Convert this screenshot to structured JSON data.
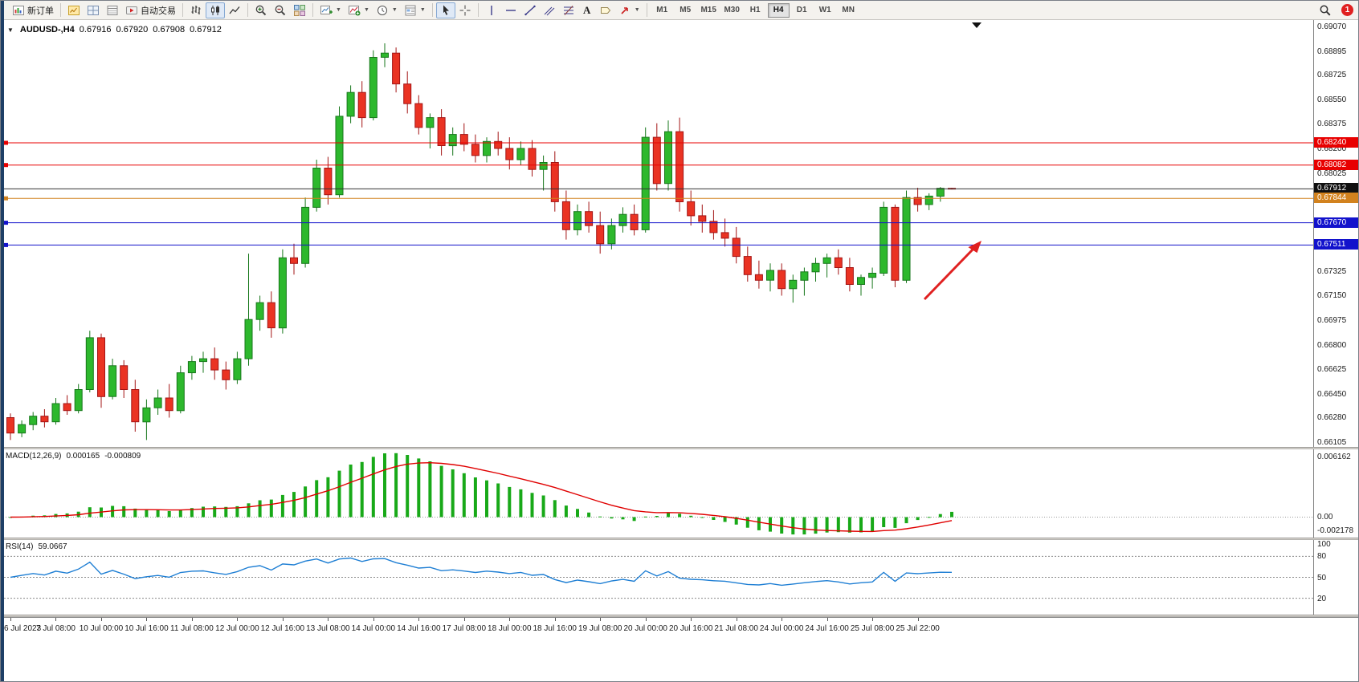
{
  "toolbar": {
    "new_order_label": "新订单",
    "autotrading_label": "自动交易",
    "timeframes": [
      "M1",
      "M5",
      "M15",
      "M30",
      "H1",
      "H4",
      "D1",
      "W1",
      "MN"
    ],
    "active_timeframe": "H4",
    "notification_count": "1"
  },
  "chart": {
    "symbol_period": "AUDUSD-,H4",
    "open": "0.67916",
    "high": "0.67920",
    "low": "0.67908",
    "close": "0.67912"
  },
  "chart_data": {
    "type": "candlestick",
    "symbol": "AUDUSD",
    "timeframe": "H4",
    "price_range": [
      0.66105,
      0.6907
    ],
    "price_axis_labels": [
      "0.69070",
      "0.68895",
      "0.68725",
      "0.68550",
      "0.68375",
      "0.68200",
      "0.68025",
      "0.67850",
      "0.67675",
      "0.67500",
      "0.67325",
      "0.67150",
      "0.66975",
      "0.66800",
      "0.66625",
      "0.66450",
      "0.66280",
      "0.66105"
    ],
    "x_labels": [
      "6 Jul 2023",
      "7 Jul 08:00",
      "10 Jul 00:00",
      "10 Jul 16:00",
      "11 Jul 08:00",
      "12 Jul 00:00",
      "12 Jul 16:00",
      "13 Jul 08:00",
      "14 Jul 00:00",
      "14 Jul 16:00",
      "17 Jul 08:00",
      "18 Jul 00:00",
      "18 Jul 16:00",
      "19 Jul 08:00",
      "20 Jul 00:00",
      "20 Jul 16:00",
      "21 Jul 08:00",
      "24 Jul 00:00",
      "24 Jul 16:00",
      "25 Jul 08:00",
      "25 Jul 22:00"
    ],
    "candles": [
      [
        0.6628,
        0.6631,
        0.6612,
        0.6617
      ],
      [
        0.6617,
        0.6626,
        0.6614,
        0.6623
      ],
      [
        0.6623,
        0.6632,
        0.6619,
        0.6629
      ],
      [
        0.6629,
        0.6634,
        0.6621,
        0.6625
      ],
      [
        0.6625,
        0.6642,
        0.6623,
        0.6638
      ],
      [
        0.6638,
        0.6644,
        0.663,
        0.6633
      ],
      [
        0.6633,
        0.6652,
        0.6631,
        0.6648
      ],
      [
        0.6648,
        0.669,
        0.6646,
        0.6685
      ],
      [
        0.6685,
        0.6688,
        0.6635,
        0.6643
      ],
      [
        0.6643,
        0.667,
        0.6641,
        0.6665
      ],
      [
        0.6665,
        0.6669,
        0.6642,
        0.6648
      ],
      [
        0.6648,
        0.6655,
        0.6618,
        0.6625
      ],
      [
        0.6625,
        0.6641,
        0.6612,
        0.6635
      ],
      [
        0.6635,
        0.6648,
        0.663,
        0.6642
      ],
      [
        0.6642,
        0.6652,
        0.6628,
        0.6633
      ],
      [
        0.6633,
        0.6665,
        0.6631,
        0.666
      ],
      [
        0.666,
        0.6672,
        0.6655,
        0.6668
      ],
      [
        0.6668,
        0.6675,
        0.666,
        0.667
      ],
      [
        0.667,
        0.6678,
        0.6655,
        0.6662
      ],
      [
        0.6662,
        0.6668,
        0.6648,
        0.6655
      ],
      [
        0.6655,
        0.6675,
        0.6652,
        0.667
      ],
      [
        0.667,
        0.6745,
        0.6665,
        0.6698
      ],
      [
        0.6698,
        0.6715,
        0.669,
        0.671
      ],
      [
        0.671,
        0.6718,
        0.6685,
        0.6692
      ],
      [
        0.6692,
        0.6748,
        0.6688,
        0.6742
      ],
      [
        0.6742,
        0.6752,
        0.673,
        0.6738
      ],
      [
        0.6738,
        0.6785,
        0.6735,
        0.6778
      ],
      [
        0.6778,
        0.6812,
        0.6775,
        0.6806
      ],
      [
        0.6806,
        0.6814,
        0.678,
        0.6787
      ],
      [
        0.6787,
        0.685,
        0.6785,
        0.6843
      ],
      [
        0.6843,
        0.6865,
        0.6838,
        0.686
      ],
      [
        0.686,
        0.6868,
        0.6835,
        0.6842
      ],
      [
        0.6842,
        0.689,
        0.684,
        0.6885
      ],
      [
        0.6885,
        0.6895,
        0.6878,
        0.6888
      ],
      [
        0.6888,
        0.6892,
        0.686,
        0.6866
      ],
      [
        0.6866,
        0.6875,
        0.6845,
        0.6852
      ],
      [
        0.6852,
        0.6858,
        0.683,
        0.6835
      ],
      [
        0.6835,
        0.6845,
        0.682,
        0.6842
      ],
      [
        0.6842,
        0.6848,
        0.6815,
        0.6822
      ],
      [
        0.6822,
        0.6835,
        0.6815,
        0.683
      ],
      [
        0.683,
        0.6838,
        0.6818,
        0.6823
      ],
      [
        0.6823,
        0.683,
        0.681,
        0.6815
      ],
      [
        0.6815,
        0.6828,
        0.681,
        0.6825
      ],
      [
        0.6825,
        0.6832,
        0.6815,
        0.682
      ],
      [
        0.682,
        0.6828,
        0.6805,
        0.6812
      ],
      [
        0.6812,
        0.6825,
        0.6808,
        0.682
      ],
      [
        0.682,
        0.6826,
        0.68,
        0.6805
      ],
      [
        0.6805,
        0.6815,
        0.679,
        0.681
      ],
      [
        0.681,
        0.6818,
        0.6775,
        0.6782
      ],
      [
        0.6782,
        0.679,
        0.6755,
        0.6762
      ],
      [
        0.6762,
        0.678,
        0.6758,
        0.6775
      ],
      [
        0.6775,
        0.6782,
        0.676,
        0.6765
      ],
      [
        0.6765,
        0.6775,
        0.6745,
        0.6752
      ],
      [
        0.6752,
        0.677,
        0.6748,
        0.6765
      ],
      [
        0.6765,
        0.6778,
        0.676,
        0.6773
      ],
      [
        0.6773,
        0.678,
        0.6758,
        0.6762
      ],
      [
        0.6762,
        0.6835,
        0.676,
        0.6828
      ],
      [
        0.6828,
        0.6838,
        0.679,
        0.6795
      ],
      [
        0.6795,
        0.684,
        0.679,
        0.6832
      ],
      [
        0.6832,
        0.6842,
        0.6775,
        0.6782
      ],
      [
        0.6782,
        0.679,
        0.6765,
        0.6772
      ],
      [
        0.6772,
        0.678,
        0.676,
        0.6768
      ],
      [
        0.6768,
        0.6776,
        0.6755,
        0.676
      ],
      [
        0.676,
        0.677,
        0.675,
        0.6756
      ],
      [
        0.6756,
        0.6764,
        0.6738,
        0.6743
      ],
      [
        0.6743,
        0.675,
        0.6725,
        0.673
      ],
      [
        0.673,
        0.674,
        0.672,
        0.6726
      ],
      [
        0.6726,
        0.6738,
        0.6718,
        0.6733
      ],
      [
        0.6733,
        0.6738,
        0.6715,
        0.672
      ],
      [
        0.672,
        0.673,
        0.671,
        0.6726
      ],
      [
        0.6726,
        0.6735,
        0.6715,
        0.6732
      ],
      [
        0.6732,
        0.6742,
        0.6725,
        0.6738
      ],
      [
        0.6738,
        0.6745,
        0.6728,
        0.6742
      ],
      [
        0.6742,
        0.6748,
        0.673,
        0.6735
      ],
      [
        0.6735,
        0.6742,
        0.6718,
        0.6723
      ],
      [
        0.6723,
        0.673,
        0.6715,
        0.6728
      ],
      [
        0.6728,
        0.6735,
        0.672,
        0.6731
      ],
      [
        0.6731,
        0.6782,
        0.6729,
        0.6778
      ],
      [
        0.6778,
        0.678,
        0.6721,
        0.6726
      ],
      [
        0.6726,
        0.679,
        0.6724,
        0.6785
      ],
      [
        0.6785,
        0.6792,
        0.6775,
        0.678
      ],
      [
        0.678,
        0.6788,
        0.6776,
        0.6786
      ],
      [
        0.6786,
        0.67925,
        0.6782,
        0.67916
      ],
      [
        0.67916,
        0.6792,
        0.67908,
        0.67912
      ]
    ],
    "horizontal_lines": [
      {
        "price": 0.6824,
        "color": "#e80000",
        "badge": "0.68240"
      },
      {
        "price": 0.68082,
        "color": "#e80000",
        "badge": "0.68082"
      },
      {
        "price": 0.67912,
        "color": "#333333",
        "badge": "0.67912",
        "badge_color": "#101010",
        "is_price_line": true
      },
      {
        "price": 0.67844,
        "color": "#d2821e",
        "badge": "0.67844"
      },
      {
        "price": 0.6767,
        "color": "#1212cc",
        "badge": "0.67670"
      },
      {
        "price": 0.67511,
        "color": "#1212cc",
        "badge": "0.67511"
      }
    ],
    "indicators": {
      "macd": {
        "label": "MACD(12,26,9)",
        "value_main": "0.000165",
        "value_signal": "-0.000809",
        "params": [
          12,
          26,
          9
        ],
        "axis_labels": [
          "0.006162",
          "0.00",
          "-0.002178"
        ]
      },
      "rsi": {
        "label": "RSI(14)",
        "value": "59.0667",
        "period": 14,
        "levels": [
          80,
          50,
          20
        ],
        "axis_labels": [
          "100",
          "80",
          "50",
          "20"
        ]
      }
    },
    "annotation": {
      "type": "arrow-up-right",
      "color": "#e02020"
    },
    "colors": {
      "up": "#2db82d",
      "up_border": "#17771b",
      "down": "#ea3323",
      "down_border": "#a31414",
      "macd_hist": "#18a918",
      "macd_signal": "#e00000",
      "rsi_line": "#1f7fd4"
    }
  }
}
